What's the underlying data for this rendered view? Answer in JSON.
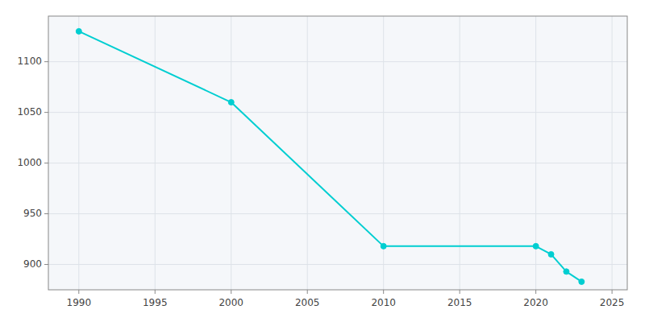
{
  "chart_data": {
    "type": "line",
    "x": [
      1990,
      2000,
      2010,
      2020,
      2021,
      2022,
      2023
    ],
    "values": [
      1130,
      1060,
      918,
      918,
      910,
      893,
      883
    ],
    "color": "#00CED1",
    "marker": "circle",
    "xlim": [
      1988,
      2026
    ],
    "ylim": [
      875,
      1145
    ],
    "xticks": [
      1990,
      1995,
      2000,
      2005,
      2010,
      2015,
      2020,
      2025
    ],
    "yticks": [
      900,
      950,
      1000,
      1050,
      1100
    ],
    "grid": true
  }
}
